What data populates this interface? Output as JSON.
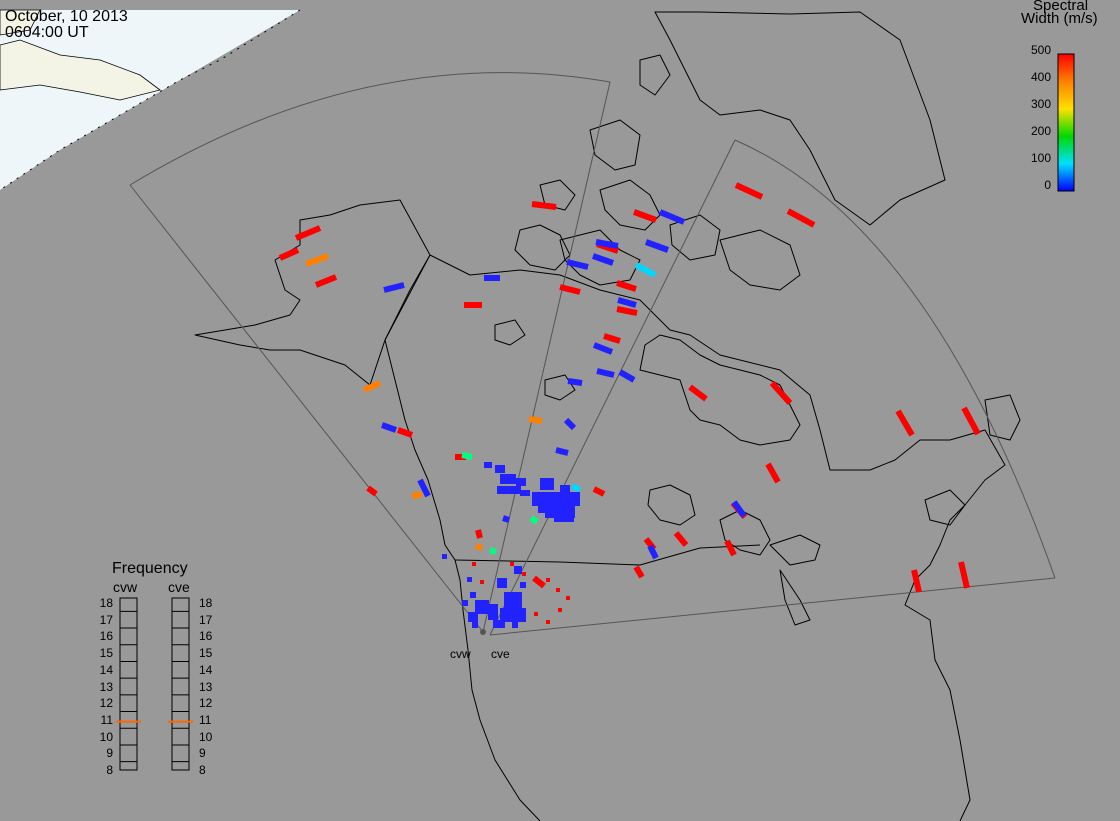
{
  "title": {
    "date": "October, 10 2013",
    "time": "0604:00 UT"
  },
  "colorbar": {
    "title_line1": "Spectral",
    "title_line2": "Width (m/s)",
    "ticks": [
      "500",
      "400",
      "300",
      "200",
      "100",
      "0"
    ],
    "range": [
      0,
      500
    ],
    "colors": [
      "#0000ff",
      "#00e0ff",
      "#00d800",
      "#ffe000",
      "#ff8000",
      "#ff0000"
    ]
  },
  "frequency_panel": {
    "title": "Frequency",
    "radars": [
      "cvw",
      "cve"
    ],
    "scale": [
      "18",
      "17",
      "16",
      "15",
      "14",
      "13",
      "12",
      "11",
      "10",
      "9",
      "8"
    ],
    "cvw_value": 10.9,
    "cve_value": 10.9
  },
  "radar_sites": [
    "cvw",
    "cve"
  ],
  "colors": {
    "background": "#999999",
    "daylight_region": "#eef6fa",
    "daylight_land": "#f4f4e6",
    "coastline": "#000000",
    "fov_outline": "#555555",
    "marker": "#ff6600"
  }
}
